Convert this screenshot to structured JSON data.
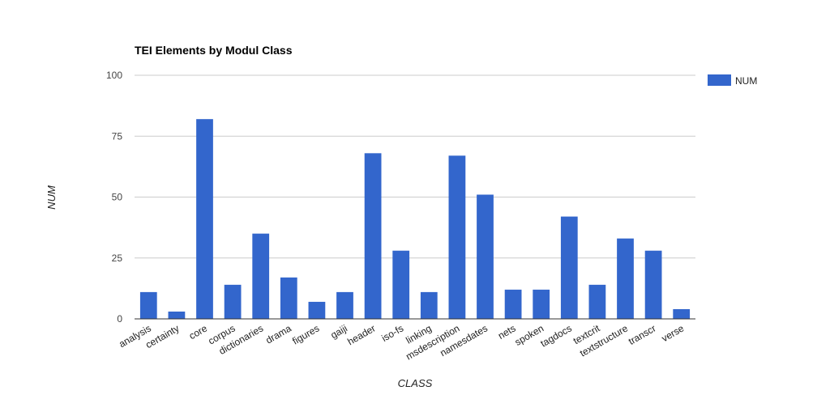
{
  "chart_data": {
    "type": "bar",
    "title": "TEI Elements by Modul Class",
    "xlabel": "CLASS",
    "ylabel": "NUM",
    "ylim": [
      0,
      100
    ],
    "yticks": [
      0,
      25,
      50,
      75,
      100
    ],
    "grid": true,
    "legend_position": "right",
    "categories": [
      "analysis",
      "certainty",
      "core",
      "corpus",
      "dictionaries",
      "drama",
      "figures",
      "gaiji",
      "header",
      "iso-fs",
      "linking",
      "msdescription",
      "namesdates",
      "nets",
      "spoken",
      "tagdocs",
      "textcrit",
      "textstructure",
      "transcr",
      "verse"
    ],
    "series": [
      {
        "name": "NUM",
        "color": "#3366cc",
        "values": [
          11,
          3,
          82,
          14,
          35,
          17,
          7,
          11,
          68,
          28,
          11,
          67,
          51,
          12,
          12,
          42,
          14,
          33,
          28,
          4
        ]
      }
    ]
  }
}
